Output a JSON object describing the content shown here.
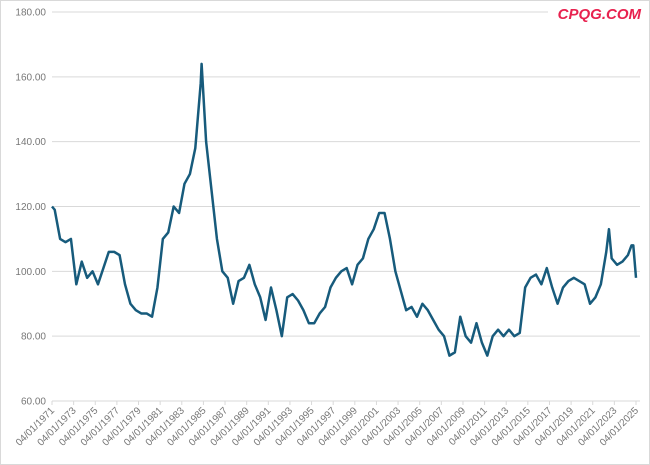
{
  "logo": "CPQG.COM",
  "chart_data": {
    "type": "line",
    "color": "#175b7c",
    "grid": true,
    "xlim": [
      "04/01/1971",
      "04/01/2025"
    ],
    "xticks": [
      "04/01/1971",
      "04/01/1973",
      "04/01/1975",
      "04/01/1977",
      "04/01/1979",
      "04/01/1981",
      "04/01/1983",
      "04/01/1985",
      "04/01/1987",
      "04/01/1989",
      "04/01/1991",
      "04/01/1993",
      "04/01/1995",
      "04/01/1997",
      "04/01/1999",
      "04/01/2001",
      "04/01/2003",
      "04/01/2005",
      "04/01/2007",
      "04/01/2009",
      "04/01/2011",
      "04/01/2013",
      "04/01/2015",
      "04/01/2017",
      "04/01/2019",
      "04/01/2021",
      "04/01/2023",
      "04/01/2025"
    ],
    "ylim": [
      60,
      180
    ],
    "yticks": [
      {
        "value": 60,
        "label": "60.00"
      },
      {
        "value": 80,
        "label": "80.00"
      },
      {
        "value": 100,
        "label": "100.00"
      },
      {
        "value": 120,
        "label": "120.00"
      },
      {
        "value": 140,
        "label": "140.00"
      },
      {
        "value": 160,
        "label": "160.00"
      },
      {
        "value": 180,
        "label": "180.00"
      }
    ],
    "x": [
      "04/01/1971",
      "07/01/1971",
      "01/01/1972",
      "07/01/1972",
      "01/01/1973",
      "07/01/1973",
      "01/01/1974",
      "07/01/1974",
      "01/01/1975",
      "07/01/1975",
      "01/01/1976",
      "07/01/1976",
      "01/01/1977",
      "07/01/1977",
      "01/01/1978",
      "07/01/1978",
      "01/01/1979",
      "07/01/1979",
      "01/01/1980",
      "07/01/1980",
      "01/01/1981",
      "07/01/1981",
      "01/01/1982",
      "07/01/1982",
      "01/01/1983",
      "07/01/1983",
      "01/01/1984",
      "07/01/1984",
      "01/01/1985",
      "02/01/1985",
      "07/01/1985",
      "01/01/1986",
      "07/01/1986",
      "01/01/1987",
      "07/01/1987",
      "01/01/1988",
      "07/01/1988",
      "01/01/1989",
      "07/01/1989",
      "01/01/1990",
      "07/01/1990",
      "01/01/1991",
      "07/01/1991",
      "01/01/1992",
      "07/01/1992",
      "01/01/1993",
      "07/01/1993",
      "01/01/1994",
      "07/01/1994",
      "01/01/1995",
      "07/01/1995",
      "01/01/1996",
      "07/01/1996",
      "01/01/1997",
      "07/01/1997",
      "01/01/1998",
      "07/01/1998",
      "01/01/1999",
      "07/01/1999",
      "01/01/2000",
      "07/01/2000",
      "01/01/2001",
      "07/01/2001",
      "01/01/2002",
      "07/01/2002",
      "01/01/2003",
      "07/01/2003",
      "01/01/2004",
      "07/01/2004",
      "01/01/2005",
      "07/01/2005",
      "01/01/2006",
      "07/01/2006",
      "01/01/2007",
      "07/01/2007",
      "01/01/2008",
      "07/01/2008",
      "01/01/2009",
      "07/01/2009",
      "01/01/2010",
      "07/01/2010",
      "01/01/2011",
      "07/01/2011",
      "01/01/2012",
      "07/01/2012",
      "01/01/2013",
      "07/01/2013",
      "01/01/2014",
      "07/01/2014",
      "01/01/2015",
      "07/01/2015",
      "01/01/2016",
      "07/01/2016",
      "01/01/2017",
      "07/01/2017",
      "01/01/2018",
      "07/01/2018",
      "01/01/2019",
      "07/01/2019",
      "01/01/2020",
      "07/01/2020",
      "01/01/2021",
      "07/01/2021",
      "01/01/2022",
      "07/01/2022",
      "10/01/2022",
      "01/01/2023",
      "07/01/2023",
      "01/01/2024",
      "07/01/2024",
      "11/01/2024",
      "01/01/2025",
      "04/01/2025"
    ],
    "values": [
      120,
      119,
      110,
      109,
      110,
      96,
      103,
      98,
      100,
      96,
      101,
      106,
      106,
      105,
      96,
      90,
      88,
      87,
      87,
      86,
      95,
      110,
      112,
      120,
      118,
      127,
      130,
      138,
      158,
      164,
      140,
      125,
      110,
      100,
      98,
      90,
      97,
      98,
      102,
      96,
      92,
      85,
      95,
      88,
      80,
      92,
      93,
      91,
      88,
      84,
      84,
      87,
      89,
      95,
      98,
      100,
      101,
      96,
      102,
      104,
      110,
      113,
      118,
      118,
      110,
      100,
      94,
      88,
      89,
      86,
      90,
      88,
      85,
      82,
      80,
      74,
      75,
      86,
      80,
      78,
      84,
      78,
      74,
      80,
      82,
      80,
      82,
      80,
      81,
      95,
      98,
      99,
      96,
      101,
      95,
      90,
      95,
      97,
      98,
      97,
      96,
      90,
      92,
      96,
      106,
      113,
      104,
      102,
      103,
      105,
      108,
      108,
      98
    ]
  }
}
